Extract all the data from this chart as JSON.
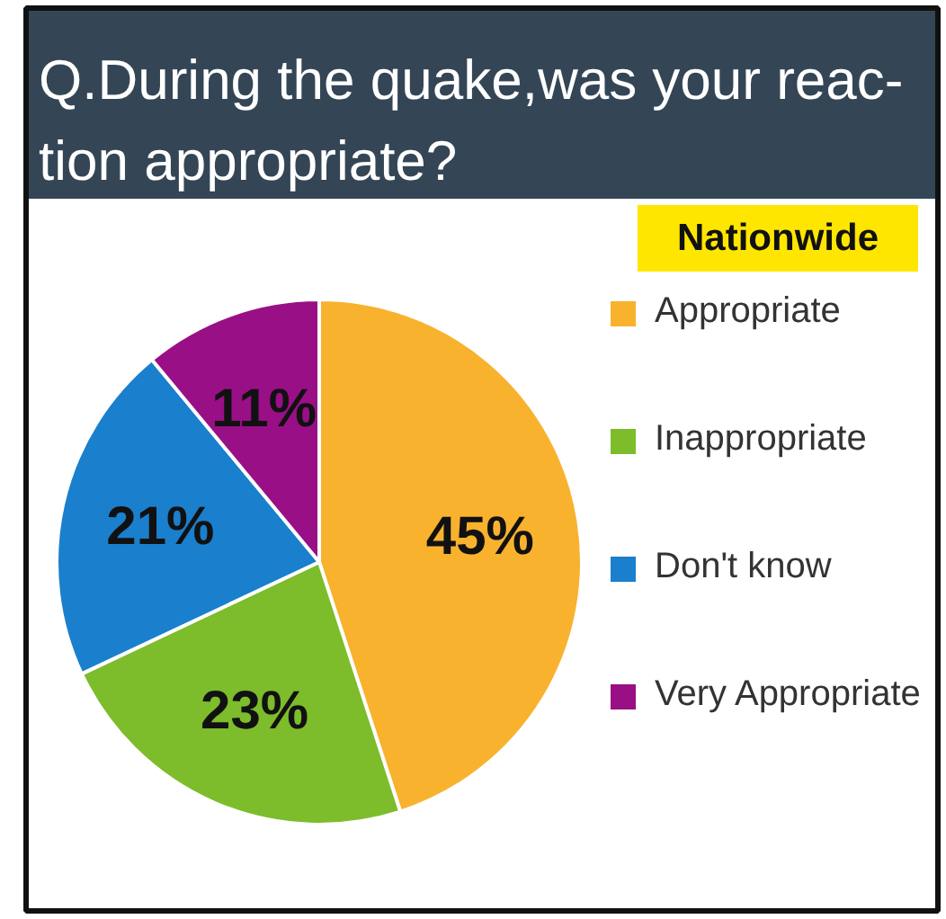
{
  "chart_data": {
    "type": "pie",
    "title": "Q.During the quake,was your reac-\ntion appropriate?",
    "subtitle": "Nationwide",
    "categories": [
      "Appropriate",
      "Inappropriate",
      "Don't know",
      "Very Appropriate"
    ],
    "values": [
      45,
      23,
      21,
      11
    ],
    "colors": [
      "#f8b22e",
      "#7dbc2b",
      "#1a7fcc",
      "#990f86"
    ],
    "value_labels": [
      "45%",
      "23%",
      "21%",
      "11%"
    ],
    "legend": "right"
  }
}
